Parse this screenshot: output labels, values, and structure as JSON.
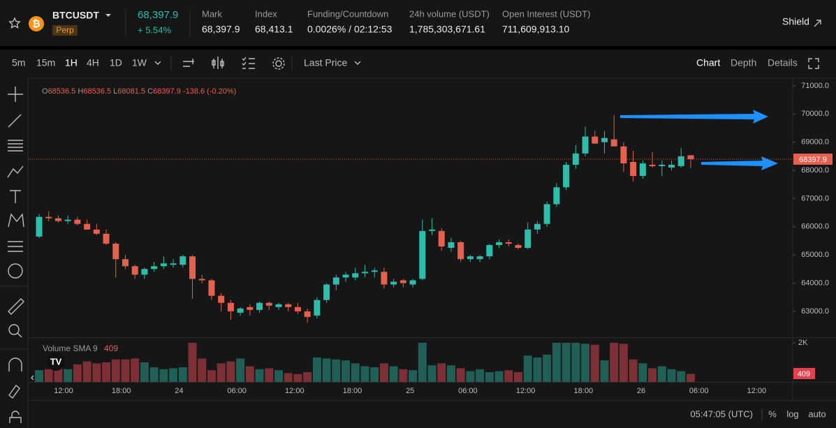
{
  "header": {
    "symbol": "BTCUSDT",
    "badge": "Perp",
    "last_price": "68,397.9",
    "change": "+ 5.54%",
    "stats": [
      {
        "label": "Mark",
        "value": "68,397.9"
      },
      {
        "label": "Index",
        "value": "68,413.1"
      },
      {
        "label": "Funding/Countdown",
        "value": "0.0026% / 02:12:53"
      },
      {
        "label": "24h volume (USDT)",
        "value": "1,785,303,671.61"
      },
      {
        "label": "Open Interest (USDT)",
        "value": "711,609,913.10"
      }
    ],
    "shield": "Shield"
  },
  "toolbar": {
    "intervals": [
      "5m",
      "15m",
      "1H",
      "4H",
      "1D",
      "1W"
    ],
    "price_source": "Last Price",
    "views": [
      "Chart",
      "Depth",
      "Details"
    ]
  },
  "chart_data": {
    "type": "candlestick",
    "legend_keys": [
      "O",
      "H",
      "L",
      "C"
    ],
    "change_label": "-138.6 (-0.20%)",
    "color_up": "#2ebdaa",
    "color_down": "#e5604f",
    "open": [
      65650,
      66350,
      66300,
      66200,
      66250,
      66100,
      65900,
      65750,
      65400,
      64850,
      64600,
      64300,
      64500,
      64600,
      64650,
      64650,
      64950,
      64150,
      64100,
      63550,
      63300,
      62950,
      63150,
      63050,
      63300,
      63150,
      63250,
      63150,
      63000,
      62850,
      63400,
      63950,
      64200,
      64200,
      64350,
      64400,
      64400,
      63950,
      64100,
      63950,
      64150,
      65850,
      65850,
      65250,
      65450,
      64850,
      64850,
      64950,
      65350,
      65450,
      65350,
      65250,
      65900,
      66100,
      66800,
      67400,
      68200,
      68600,
      69200,
      69000,
      69100,
      68850,
      68300,
      67800,
      68200,
      68150,
      68100,
      68150,
      68536.5
    ],
    "high": [
      66450,
      66550,
      66400,
      66400,
      66350,
      66250,
      66100,
      65900,
      65450,
      65000,
      64650,
      64550,
      64750,
      64950,
      64850,
      65000,
      65000,
      64300,
      64150,
      63650,
      63400,
      63150,
      63250,
      63350,
      63350,
      63300,
      63300,
      63300,
      63100,
      63500,
      64000,
      64300,
      64400,
      64550,
      64650,
      64550,
      64550,
      64150,
      64150,
      64150,
      66250,
      66300,
      65950,
      65600,
      65500,
      65000,
      65000,
      65400,
      65550,
      65550,
      65400,
      66150,
      66200,
      66900,
      67550,
      68300,
      68900,
      69550,
      69400,
      69400,
      69950,
      69000,
      68700,
      68350,
      68650,
      68350,
      68350,
      68800,
      68536.5
    ],
    "low": [
      65600,
      66200,
      66150,
      66100,
      66050,
      65900,
      65700,
      65350,
      64200,
      64500,
      64150,
      64150,
      64400,
      64500,
      64550,
      64550,
      63450,
      64000,
      63400,
      63000,
      62700,
      62850,
      62850,
      62950,
      63050,
      63050,
      63000,
      62900,
      62600,
      62750,
      63300,
      63750,
      64050,
      64100,
      64200,
      64200,
      63800,
      63850,
      63850,
      63850,
      64100,
      65700,
      65150,
      65100,
      64750,
      64750,
      64750,
      64850,
      65250,
      65300,
      65200,
      65200,
      65750,
      66000,
      66700,
      67300,
      68050,
      68500,
      68950,
      68600,
      68850,
      67950,
      67600,
      67700,
      68100,
      67800,
      68000,
      68100,
      68081.5
    ],
    "close": [
      66350,
      66300,
      66200,
      66250,
      66100,
      65900,
      65750,
      65400,
      64850,
      64600,
      64300,
      64500,
      64600,
      64700,
      64700,
      64950,
      64150,
      64100,
      63550,
      63300,
      63000,
      63100,
      63050,
      63300,
      63200,
      63250,
      63150,
      63000,
      62800,
      63400,
      63950,
      64200,
      64300,
      64350,
      64400,
      64450,
      63950,
      64050,
      64000,
      64100,
      65850,
      65900,
      65300,
      65450,
      64850,
      64950,
      64950,
      65350,
      65450,
      65400,
      65250,
      65900,
      66100,
      66800,
      67400,
      68200,
      68600,
      69200,
      68950,
      69150,
      68850,
      68250,
      67800,
      68250,
      68150,
      68200,
      68200,
      68500,
      68397.9
    ],
    "ylim": [
      62080,
      71270
    ],
    "yticks": [
      {
        "value": 71000,
        "label": "71000.0"
      },
      {
        "value": 70000,
        "label": "70000.0"
      },
      {
        "value": 69000,
        "label": "69000.0"
      },
      {
        "value": 68000,
        "label": "68000.0"
      },
      {
        "value": 67000,
        "label": "67000.0"
      },
      {
        "value": 66000,
        "label": "66000.0"
      },
      {
        "value": 65000,
        "label": "65000.0"
      },
      {
        "value": 64000,
        "label": "64000.0"
      },
      {
        "value": 63000,
        "label": "63000.0"
      }
    ],
    "xticks": [
      "12:00",
      "18:00",
      "24",
      "06:00",
      "12:00",
      "18:00",
      "25",
      "06:00",
      "12:00",
      "18:00",
      "26",
      "06:00",
      "12:00"
    ],
    "volume": {
      "title": "Volume SMA 9",
      "color_up": "#1f5f56",
      "color_down": "#7c3036",
      "values": [
        600,
        650,
        800,
        650,
        900,
        1050,
        950,
        1000,
        1150,
        1150,
        1200,
        1000,
        750,
        650,
        700,
        750,
        2000,
        1200,
        600,
        950,
        1050,
        1200,
        800,
        650,
        700,
        600,
        450,
        400,
        500,
        1250,
        1200,
        1150,
        1100,
        950,
        800,
        750,
        950,
        800,
        650,
        600,
        2000,
        850,
        950,
        850,
        700,
        550,
        650,
        500,
        550,
        600,
        500,
        1350,
        1250,
        1400,
        2000,
        2000,
        2000,
        1950,
        1900,
        1100,
        2000,
        1950,
        1150,
        950,
        700,
        800,
        650,
        550,
        409
      ],
      "ylim": [
        0,
        2250
      ],
      "yticks": [
        {
          "value": 2000,
          "label": "2K"
        }
      ]
    }
  },
  "footer": {
    "clock": "05:47:05 (UTC)",
    "options": [
      "%",
      "log",
      "auto"
    ]
  }
}
